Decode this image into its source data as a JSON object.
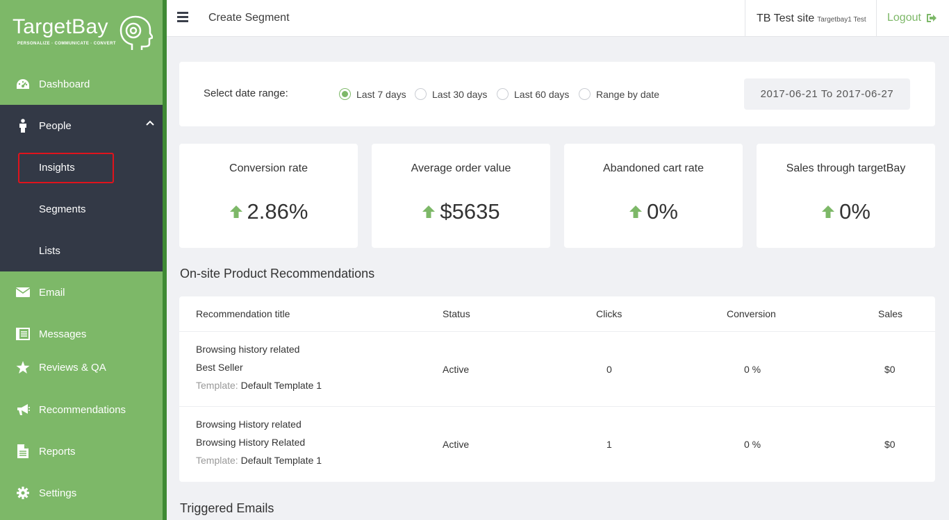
{
  "brand": {
    "name": "TargetBay",
    "tagline": "PERSONALIZE · COMMUNICATE · CONVERT",
    "accent": "#7db868",
    "dark": "#333946"
  },
  "sidebar": {
    "items": [
      {
        "label": "Dashboard",
        "icon": "dashboard-icon"
      },
      {
        "label": "People",
        "icon": "person-icon"
      },
      {
        "label": "Email",
        "icon": "envelope-icon"
      },
      {
        "label": "Messages",
        "icon": "messages-icon"
      },
      {
        "label": "Reviews & QA",
        "icon": "star-icon"
      },
      {
        "label": "Recommendations",
        "icon": "megaphone-icon"
      },
      {
        "label": "Reports",
        "icon": "document-icon"
      },
      {
        "label": "Settings",
        "icon": "gear-icon"
      }
    ],
    "people_sub": [
      {
        "label": "Insights"
      },
      {
        "label": "Segments"
      },
      {
        "label": "Lists"
      }
    ]
  },
  "topbar": {
    "title": "Create Segment",
    "site_name": "TB Test site",
    "site_sub": "Targetbay1 Test",
    "logout": "Logout"
  },
  "date_range": {
    "label": "Select date range:",
    "options": [
      "Last 7 days",
      "Last 30 days",
      "Last 60 days",
      "Range by date"
    ],
    "selected": "Last 7 days",
    "display": "2017-06-21 To 2017-06-27"
  },
  "metrics": [
    {
      "title": "Conversion rate",
      "value": "2.86%"
    },
    {
      "title": "Average order value",
      "value": "$5635"
    },
    {
      "title": "Abandoned cart rate",
      "value": "0%"
    },
    {
      "title": "Sales through targetBay",
      "value": "0%"
    }
  ],
  "recommendations": {
    "title": "On-site Product Recommendations",
    "columns": [
      "Recommendation title",
      "Status",
      "Clicks",
      "Conversion",
      "Sales"
    ],
    "template_label": "Template:",
    "rows": [
      {
        "line1": "Browsing history related",
        "line2": "Best Seller",
        "template": "Default Template 1",
        "status": "Active",
        "clicks": "0",
        "conversion": "0 %",
        "sales": "$0"
      },
      {
        "line1": "Browsing History related",
        "line2": "Browsing History Related",
        "template": "Default Template 1",
        "status": "Active",
        "clicks": "1",
        "conversion": "0 %",
        "sales": "$0"
      }
    ]
  },
  "triggered": {
    "title": "Triggered Emails"
  }
}
